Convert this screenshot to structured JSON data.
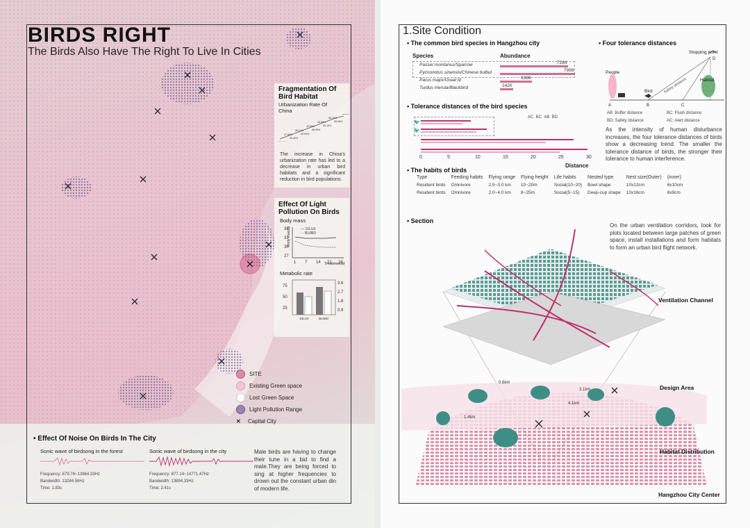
{
  "left": {
    "title": "BIRDS RIGHT",
    "subtitle": "The Birds Also Have The Right To Live In Cities",
    "fragmentation": {
      "heading": "Fragmentation Of Bird Habitat",
      "chart_title": "Urbanization Rate Of China",
      "values": [
        "26.41%",
        "27.66%",
        "30.40%",
        "36.22%",
        "39.09%",
        "42.99%",
        "46.99%",
        "49.95%",
        "53.10%",
        "56.10%",
        "59.58%",
        "63.89%"
      ],
      "text": "The increase in China's urbanization rate has led to a decrease in urban bird habitats and a significant reduction in bird populations."
    },
    "light": {
      "heading": "Effect Of Light Pollution On Birds",
      "body_mass_label": "Body mass",
      "body_mass_ylabel": "Body mass/g",
      "series": [
        "10LUX",
        "BL0BD"
      ],
      "yticks": [
        "36",
        "33",
        "30",
        "27"
      ],
      "xticks": [
        "1",
        "7",
        "14",
        "21",
        "28"
      ],
      "xlabel": "Treatment/d",
      "metabolic_label": "Metabolic rate",
      "met_yticks_left": [
        "75",
        "50",
        "25"
      ],
      "met_yticks_right": [
        "3.6",
        "2.7",
        "1.8",
        "0.9"
      ],
      "met_categories": [
        "10LUX",
        "BL0BD"
      ]
    },
    "legend": [
      "SITE",
      "Existing Green space",
      "Lost Green Space",
      "Light Pollution Range",
      "Capital City"
    ],
    "noise": {
      "heading": "Effect Of Noise On Birds In The City",
      "forest_title": "Sonic wave of birdsong in the forest",
      "forest_freq": "Frequency: 679.76~13964.33Hz",
      "forest_band": "Bandwidth: 13284.56Hz",
      "forest_time": "Time: 1.83s",
      "city_title": "Sonic wave of birdsong in the city",
      "city_freq": "Frequency: 877.14~14771.47Hz",
      "city_band": "Bandwidth: 13894.33Hz",
      "city_time": "Time: 2.41s",
      "text": "Male birds are having to change their tune in a bid to find a mate.They are being forced to sing at higher frequencies to drown out the constant urban din of modern life."
    }
  },
  "right": {
    "title": "1.Site Condition",
    "species": {
      "heading": "The common bird species in Hangzhou city",
      "col1": "Species",
      "col2": "Abundance",
      "rows": [
        {
          "name": "Passer montanus/Sparrow",
          "value": "7284",
          "v": 7284
        },
        {
          "name": "Pycnonotus sinensis/Chinese bulbul",
          "value": "7999",
          "v": 7999
        },
        {
          "name": "Parus major/Great tit",
          "value": "3398",
          "v": 3398
        },
        {
          "name": "Turdus merula/Blackbird",
          "value": "1420",
          "v": 1420
        }
      ]
    },
    "tolerance": {
      "heading": "Tolerance distances of the bird species",
      "legend": [
        "AC",
        "BC",
        "AB",
        "BD"
      ],
      "xticks": [
        "0",
        "5",
        "10",
        "15",
        "20",
        "25",
        "30"
      ],
      "xlabel": "Distance"
    },
    "four": {
      "heading": "Four tolerance distances",
      "stopping_point": "Stopping point",
      "people": "People",
      "bird": "Bird",
      "safety": "Safety distance",
      "habitat": "Habitat",
      "points": [
        "A",
        "B",
        "C",
        "D"
      ],
      "defs": [
        "AB: Buffer distance",
        "BC: Flush distance",
        "BD: Safety distance",
        "AC: Alert distance"
      ],
      "text": "As the intensity of human disturbance increases, the four tolerance distances of birds show a decreasing trend. The smaller the tolerance distance of birds, the stronger their tolerance to human interference."
    },
    "habits": {
      "heading": "The habits of birds",
      "headers": [
        "Type",
        "Feeding habits",
        "Flying range",
        "Flying height",
        "Life habits",
        "Nested type",
        "Nest size(Outer)",
        "(inner)"
      ],
      "rows": [
        [
          "Resident birds",
          "Omnivore",
          "2.5~3.0 km",
          "10~20m",
          "Social(10~20)",
          "Bowl shape",
          "10x12cm",
          "6x10cm"
        ],
        [
          "Resident birds",
          "Omnivore",
          "2.0~4.0 km",
          "8~25m",
          "Social(5~15)",
          "Deep-cup shape",
          "10x16cm",
          "6x9cm"
        ]
      ]
    },
    "section": {
      "heading": "Section",
      "text": "On the urban ventilation corridors, look for plots located between large patches of green space, install installations and form habitats to form an urban bird flight network.",
      "labels": [
        "Ventilation Channel",
        "Design Area",
        "Habitat Distribution",
        "Hangzhou City Center"
      ],
      "distances": [
        "0.8km",
        "3.1km",
        "1.4km",
        "4.1km"
      ]
    }
  }
}
